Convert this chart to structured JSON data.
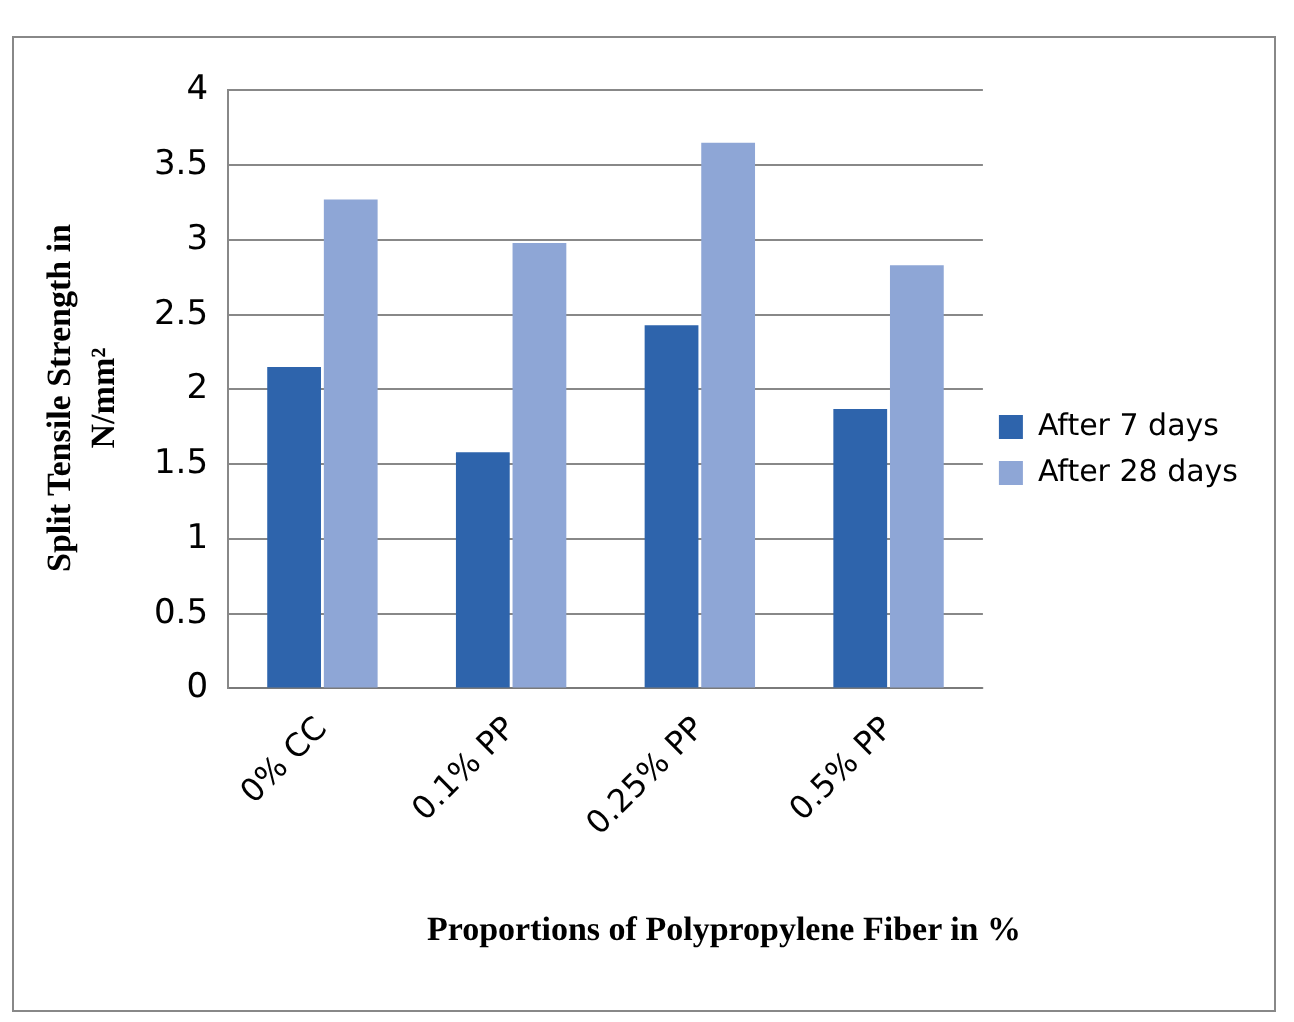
{
  "chart_data": {
    "type": "bar",
    "xlabel": "Proportions of Polypropylene Fiber in %",
    "ylabel": "Split Tensile Strength  in N/mm²",
    "categories": [
      "0% CC",
      "0.1% PP",
      "0.25% PP",
      "0.5% PP"
    ],
    "series": [
      {
        "name": "After 7 days",
        "color": "#2e64ac",
        "values": [
          2.15,
          1.58,
          2.43,
          1.87
        ]
      },
      {
        "name": "After 28 days",
        "color": "#8ea6d6",
        "values": [
          3.27,
          2.98,
          3.65,
          2.83
        ]
      }
    ],
    "ylim": [
      0,
      4
    ],
    "yticks": [
      0,
      0.5,
      1,
      1.5,
      2,
      2.5,
      3,
      3.5,
      4
    ],
    "grid": "y",
    "legend": "right"
  }
}
